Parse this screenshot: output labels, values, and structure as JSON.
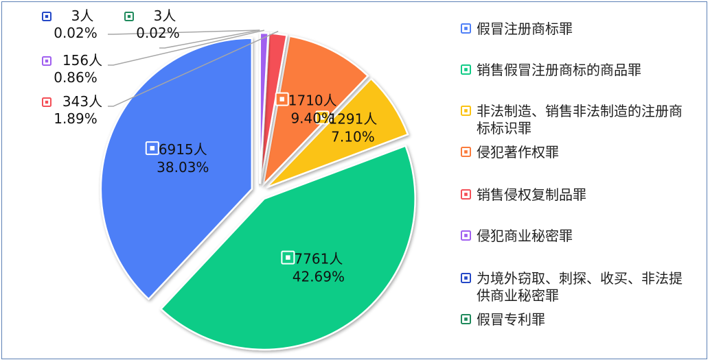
{
  "chart_data": {
    "type": "pie",
    "title": "",
    "unit": "人",
    "slices": [
      {
        "name": "假冒注册商标罪",
        "value": 6915,
        "value_label": "6915人",
        "percent": "38.03%",
        "color": "#4e7ff7"
      },
      {
        "name": "销售假冒注册商标的商品罪",
        "value": 7761,
        "value_label": "7761人",
        "percent": "42.69%",
        "color": "#11cc87"
      },
      {
        "name": "非法制造、销售非法制造的注册商标标识罪",
        "value": 1291,
        "value_label": "1291人",
        "percent": "7.10%",
        "color": "#fbc312"
      },
      {
        "name": "侵犯著作权罪",
        "value": 1710,
        "value_label": "1710人",
        "percent": "9.40%",
        "color": "#fb7c3c"
      },
      {
        "name": "销售侵权复制品罪",
        "value": 343,
        "value_label": "343人",
        "percent": "1.89%",
        "color": "#f44f57"
      },
      {
        "name": "侵犯商业秘密罪",
        "value": 156,
        "value_label": "156人",
        "percent": "0.86%",
        "color": "#a05ff0"
      },
      {
        "name": "为境外窃取、刺探、收买、非法提供商业秘密罪",
        "value": 3,
        "value_label": "3人",
        "percent": "0.02%",
        "color": "#2448c7"
      },
      {
        "name": "假冒专利罪",
        "value": 3,
        "value_label": "3人",
        "percent": "0.02%",
        "color": "#1f8a5c"
      }
    ],
    "legend_position": "right"
  }
}
